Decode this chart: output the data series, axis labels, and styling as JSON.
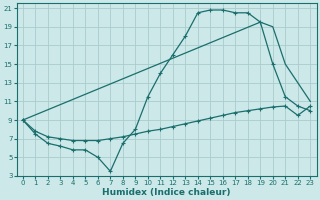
{
  "xlabel": "Humidex (Indice chaleur)",
  "bg_color": "#cce8e8",
  "grid_color": "#aacccc",
  "line_color": "#1a6e6e",
  "xlim": [
    -0.5,
    23.5
  ],
  "ylim": [
    3,
    21.5
  ],
  "xticks": [
    0,
    1,
    2,
    3,
    4,
    5,
    6,
    7,
    8,
    9,
    10,
    11,
    12,
    13,
    14,
    15,
    16,
    17,
    18,
    19,
    20,
    21,
    22,
    23
  ],
  "yticks": [
    3,
    5,
    7,
    9,
    11,
    13,
    15,
    17,
    19,
    21
  ],
  "line1_x": [
    0,
    1,
    2,
    3,
    4,
    5,
    6,
    7,
    8,
    9,
    10,
    11,
    12,
    13,
    14,
    15,
    16,
    17,
    18,
    19,
    20,
    21,
    22,
    23
  ],
  "line1_y": [
    9,
    7.5,
    6.5,
    6.2,
    5.8,
    5.8,
    5.0,
    3.5,
    6.5,
    8.0,
    11.5,
    14.0,
    16.0,
    18.0,
    20.5,
    20.8,
    20.8,
    20.5,
    20.5,
    19.5,
    15.0,
    11.5,
    10.5,
    10.0
  ],
  "line2_x": [
    0,
    1,
    2,
    3,
    4,
    5,
    6,
    7,
    8,
    9,
    10,
    11,
    12,
    13,
    14,
    15,
    16,
    17,
    18,
    19,
    20,
    21,
    22,
    23
  ],
  "line2_y": [
    9.0,
    7.8,
    7.2,
    7.0,
    6.8,
    6.8,
    6.8,
    7.0,
    7.2,
    7.5,
    7.8,
    8.0,
    8.3,
    8.6,
    8.9,
    9.2,
    9.5,
    9.8,
    10.0,
    10.2,
    10.4,
    10.5,
    9.5,
    10.5
  ],
  "line3_x": [
    0,
    19,
    20,
    21,
    23
  ],
  "line3_y": [
    9.0,
    19.5,
    19.0,
    15.0,
    11.0
  ]
}
